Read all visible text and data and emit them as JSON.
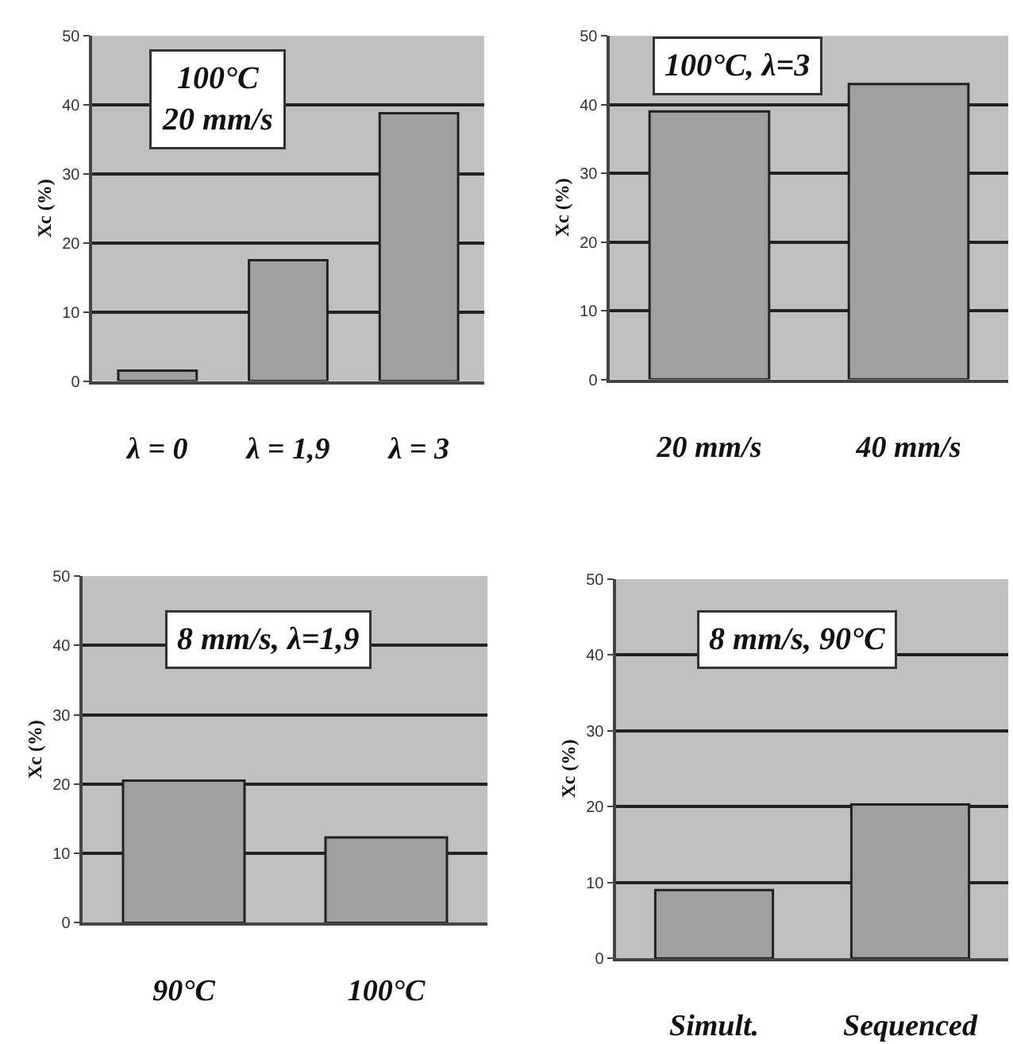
{
  "chart_data": [
    {
      "type": "bar",
      "title": "100°C\n20 mm/s",
      "ylabel": "Xc (%)",
      "categories": [
        "λ = 0",
        "λ = 1,9",
        "λ = 3"
      ],
      "values": [
        1.5,
        17.5,
        38.8
      ],
      "color": "#a0a0a0",
      "ylim": [
        0,
        50
      ],
      "yticks": [
        0,
        10,
        20,
        30,
        40,
        50
      ],
      "grid": "y"
    },
    {
      "type": "bar",
      "title": "100°C, λ=3",
      "ylabel": "Xc (%)",
      "categories": [
        "20 mm/s",
        "40 mm/s"
      ],
      "values": [
        39,
        43
      ],
      "color": "#a0a0a0",
      "ylim": [
        0,
        50
      ],
      "yticks": [
        0,
        10,
        20,
        30,
        40,
        50
      ],
      "grid": "y"
    },
    {
      "type": "bar",
      "title": "8 mm/s, λ=1,9",
      "ylabel": "Xc (%)",
      "categories": [
        "90°C",
        "100°C"
      ],
      "values": [
        20.5,
        12.3
      ],
      "color": "#a0a0a0",
      "ylim": [
        0,
        50
      ],
      "yticks": [
        0,
        10,
        20,
        30,
        40,
        50
      ],
      "grid": "y"
    },
    {
      "type": "bar",
      "title": "8 mm/s, 90°C",
      "ylabel": "Xc (%)",
      "categories": [
        "Simult.",
        "Sequenced"
      ],
      "values": [
        9,
        20.3
      ],
      "color": "#a0a0a0",
      "ylim": [
        0,
        50
      ],
      "yticks": [
        0,
        10,
        20,
        30,
        40,
        50
      ],
      "grid": "y"
    }
  ]
}
